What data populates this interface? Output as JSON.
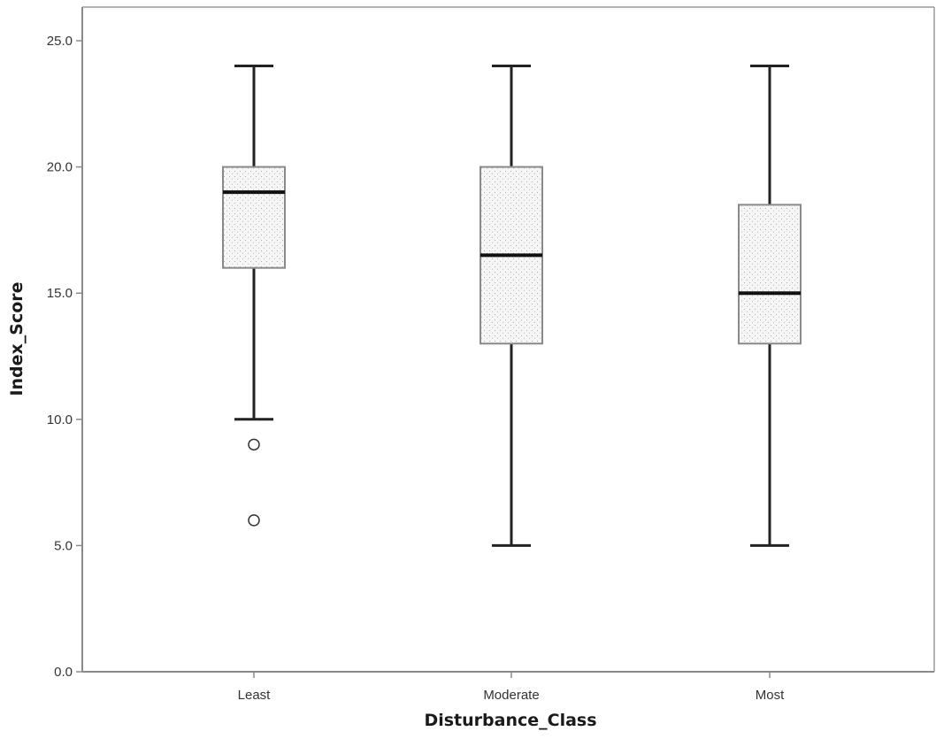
{
  "chart_data": {
    "type": "box",
    "title": "",
    "xlabel": "Disturbance_Class",
    "ylabel": "Index_Score",
    "ylim": [
      0,
      25
    ],
    "yticks": [
      "0.0",
      "5.0",
      "10.0",
      "15.0",
      "20.0",
      "25.0"
    ],
    "ytick_values": [
      0,
      5,
      10,
      15,
      20,
      25
    ],
    "grid": false,
    "categories": [
      "Least",
      "Moderate",
      "Most"
    ],
    "boxes": [
      {
        "category": "Least",
        "min": 10.0,
        "q1": 16.0,
        "median": 19.0,
        "q3": 20.0,
        "max": 24.0,
        "outliers": [
          9.0,
          6.0
        ]
      },
      {
        "category": "Moderate",
        "min": 5.0,
        "q1": 13.0,
        "median": 16.5,
        "q3": 20.0,
        "max": 24.0,
        "outliers": []
      },
      {
        "category": "Most",
        "min": 5.0,
        "q1": 13.0,
        "median": 15.0,
        "q3": 18.5,
        "max": 24.0,
        "outliers": []
      }
    ],
    "colors": {
      "box_fill": "#f4f4f4",
      "stipple": "#9a9a9a",
      "box_edge": "#8a8a8a",
      "median": "#111111",
      "whisker": "#222222"
    }
  }
}
